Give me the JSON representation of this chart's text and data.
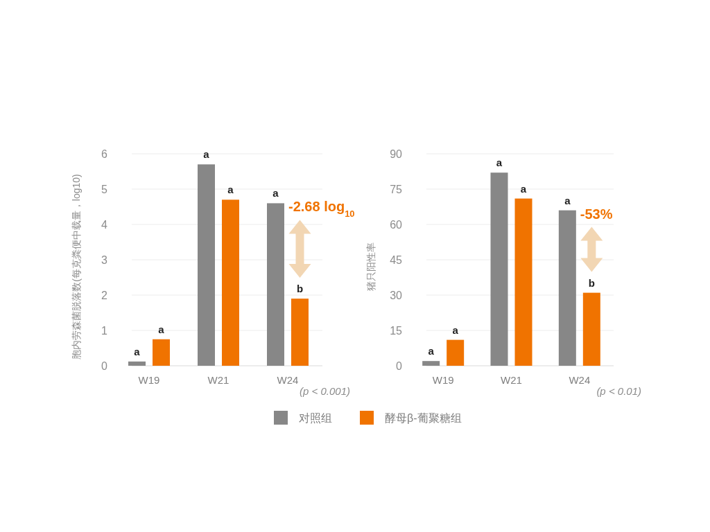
{
  "chart_data": [
    {
      "type": "bar",
      "ylabel": "胞内劳森菌脱落数(每克粪便中载量，log10)",
      "categories": [
        "W19",
        "W21",
        "W24"
      ],
      "series": [
        {
          "name": "对照组",
          "color": "#878787",
          "values": [
            0.12,
            5.7,
            4.6
          ]
        },
        {
          "name": "酵母β-葡聚糖组",
          "color": "#f07300",
          "values": [
            0.75,
            4.7,
            1.9
          ]
        }
      ],
      "ylim": [
        0,
        6
      ],
      "yticks": [
        0,
        1,
        2,
        3,
        4,
        5,
        6
      ],
      "grid": "y",
      "legend": "bottom",
      "annotations": [
        "-2.68 log$_{10}$",
        "(p < 0.001)",
        "a",
        "a",
        "a",
        "a",
        "a",
        "b"
      ]
    },
    {
      "type": "bar",
      "ylabel": "猪只阳性率",
      "categories": [
        "W19",
        "W21",
        "W24"
      ],
      "series": [
        {
          "color": "#878787",
          "values": [
            2,
            82,
            66
          ]
        },
        {
          "color": "#f07300",
          "values": [
            11,
            71,
            31
          ]
        }
      ],
      "ylim": [
        0,
        90
      ],
      "yticks": [
        0,
        15,
        30,
        45,
        60,
        75,
        90
      ],
      "grid": "y",
      "annotations": [
        "-53%",
        "(p < 0.01)",
        "a",
        "a",
        "a",
        "a",
        "a",
        "b"
      ]
    }
  ]
}
